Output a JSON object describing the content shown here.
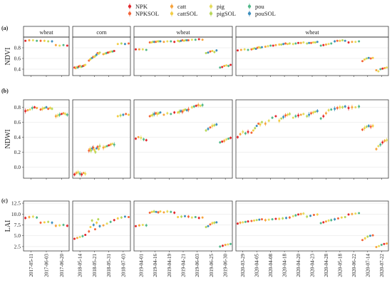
{
  "chart_data": {
    "type": "scatter",
    "legend": {
      "placement": "top",
      "entries": [
        {
          "name": "NPK",
          "color": "#e3292e"
        },
        {
          "name": "NPKSOL",
          "color": "#f3653a"
        },
        {
          "name": "catt",
          "color": "#f7a33d"
        },
        {
          "name": "cattSOL",
          "color": "#f3ce45"
        },
        {
          "name": "pig",
          "color": "#e5dc5c"
        },
        {
          "name": "pigSOL",
          "color": "#b8d85a"
        },
        {
          "name": "pou",
          "color": "#52b98a"
        },
        {
          "name": "pouSOL",
          "color": "#3d8fbe"
        }
      ]
    },
    "facets": [
      {
        "label": "wheat",
        "dates": [
          "2017-05-11",
          "2017-06-03",
          "2017-06-20"
        ]
      },
      {
        "label": "corn",
        "dates": [
          "2018-05-14",
          "2018-05-21",
          "2018-05-31",
          "2018-07-03"
        ]
      },
      {
        "label": "wheat",
        "dates": [
          "2019-04-01",
          "2019-04-16",
          "2019-04-19",
          "2019-04-21",
          "2019-06-03",
          "2019-06-25",
          "2019-06-30"
        ]
      },
      {
        "label": "wheat",
        "dates": [
          "2020-03-29",
          "2020-04-05",
          "2020-04-08",
          "2020-04-18",
          "2020-04-20",
          "2020-04-23",
          "2020-04-28",
          "2020-05-18",
          "2020-06-22",
          "2020-07-14",
          "2020-07-22"
        ]
      }
    ],
    "panels": [
      {
        "tag": "(a)",
        "ylabel": "NDVI",
        "ylim": [
          0.28,
          1.0
        ],
        "yticks": [
          0.4,
          0.6,
          0.8
        ],
        "values": [
          [
            [
              0.93,
              0.94,
              0.94,
              0.93
            ],
            [
              0.93,
              0.93,
              0.92,
              0.92
            ],
            [
              0.85,
              0.84,
              0.85,
              0.84
            ]
          ],
          [
            [
              0.43,
              0.42,
              0.44,
              0.43,
              0.45,
              0.46,
              0.44,
              0.45,
              0.46,
              0.47,
              0.48
            ],
            [
              0.56,
              0.58,
              0.6,
              0.61,
              0.63,
              0.63,
              0.65,
              0.67,
              0.7,
              0.69,
              0.71
            ],
            [
              0.68,
              0.69,
              0.7,
              0.71,
              0.72,
              0.73,
              0.73,
              0.74
            ],
            [
              0.87,
              0.88,
              0.87,
              0.88
            ]
          ],
          [
            [
              0.77,
              0.77,
              0.77,
              0.76
            ],
            [
              0.9,
              0.9,
              0.91,
              0.91,
              0.91,
              0.92,
              0.92,
              0.92
            ],
            [
              0.91,
              0.92,
              0.92,
              0.91
            ],
            [
              0.93,
              0.92,
              0.93,
              0.94,
              0.93,
              0.94,
              0.94,
              0.94
            ],
            [
              0.95,
              0.95,
              0.96,
              0.95
            ],
            [
              0.7,
              0.71,
              0.73,
              0.74,
              0.72,
              0.75
            ],
            [
              0.43,
              0.44,
              0.46,
              0.47,
              0.46,
              0.48
            ]
          ],
          [
            [
              0.75,
              0.76,
              0.77,
              0.76
            ],
            [
              0.77,
              0.78,
              0.79,
              0.78,
              0.8,
              0.81,
              0.8,
              0.81
            ],
            [
              0.82,
              0.83,
              0.84,
              0.84,
              0.85
            ],
            [
              0.86,
              0.86,
              0.87,
              0.88,
              0.87,
              0.88
            ],
            [
              0.87,
              0.88,
              0.89,
              0.89,
              0.9
            ],
            [
              0.88,
              0.89,
              0.89,
              0.9,
              0.9,
              0.91
            ],
            [
              0.84,
              0.85,
              0.86,
              0.87,
              0.88
            ],
            [
              0.92,
              0.93,
              0.93,
              0.94,
              0.93
            ],
            [
              0.9,
              0.91,
              0.91,
              0.92
            ],
            [
              0.55,
              0.58,
              0.6,
              0.61,
              0.6,
              0.61
            ],
            [
              0.38,
              0.36,
              0.4,
              0.41,
              0.42,
              0.43
            ]
          ]
        ]
      },
      {
        "tag": "(b)",
        "ylabel": "NDWI",
        "ylim": [
          -0.15,
          0.9
        ],
        "yticks": [
          0.0,
          0.2,
          0.4,
          0.6,
          0.8
        ],
        "values": [
          [
            [
              0.75,
              0.76,
              0.77,
              0.79,
              0.8,
              0.79
            ],
            [
              0.77,
              0.78,
              0.79,
              0.8,
              0.78,
              0.79,
              0.78
            ],
            [
              0.68,
              0.69,
              0.7,
              0.71,
              0.72,
              0.71,
              0.7
            ]
          ],
          [
            [
              -0.1,
              -0.08,
              -0.07,
              -0.09,
              -0.1,
              -0.08,
              -0.09
            ],
            [
              0.22,
              0.24,
              0.22,
              0.25,
              0.26,
              0.23,
              0.2,
              0.25,
              0.27,
              0.24,
              0.28
            ],
            [
              0.26,
              0.27,
              0.28,
              0.29,
              0.3,
              0.31,
              0.3
            ],
            [
              0.68,
              0.69,
              0.7,
              0.71,
              0.7
            ]
          ],
          [
            [
              0.38,
              0.4,
              0.39,
              0.37,
              0.36
            ],
            [
              0.68,
              0.69,
              0.7,
              0.71,
              0.72,
              0.71,
              0.72,
              0.73
            ],
            [
              0.7,
              0.72,
              0.71,
              0.73
            ],
            [
              0.73,
              0.74,
              0.75,
              0.74,
              0.76,
              0.77,
              0.76,
              0.77
            ],
            [
              0.8,
              0.81,
              0.82,
              0.83,
              0.82,
              0.83
            ],
            [
              0.49,
              0.51,
              0.53,
              0.55,
              0.56,
              0.57
            ],
            [
              0.33,
              0.34,
              0.35,
              0.37,
              0.38,
              0.39
            ]
          ],
          [
            [
              0.4,
              0.44,
              0.47,
              0.45,
              0.47
            ],
            [
              0.46,
              0.49,
              0.52,
              0.55,
              0.58,
              0.57,
              0.6
            ],
            [
              0.58,
              0.62,
              0.66,
              0.68
            ],
            [
              0.62,
              0.65,
              0.67,
              0.69,
              0.7,
              0.71
            ],
            [
              0.66,
              0.68,
              0.69,
              0.7,
              0.71
            ],
            [
              0.68,
              0.7,
              0.72,
              0.73,
              0.74,
              0.75
            ],
            [
              0.65,
              0.68,
              0.72,
              0.76,
              0.77
            ],
            [
              0.78,
              0.79,
              0.8,
              0.8,
              0.81
            ],
            [
              0.79,
              0.8,
              0.8,
              0.81
            ],
            [
              0.5,
              0.52,
              0.54,
              0.55,
              0.54,
              0.55
            ],
            [
              0.24,
              0.28,
              0.3,
              0.33,
              0.35,
              0.36
            ]
          ]
        ]
      },
      {
        "tag": "(c)",
        "ylabel": "LAI",
        "ylim": [
          1.5,
          13.0
        ],
        "yticks": [
          2.5,
          5.0,
          7.5,
          10.0,
          12.5
        ],
        "yticklabels": [
          "2.5",
          "5.0",
          "7.5",
          "10.0",
          "12.5"
        ],
        "values": [
          [
            [
              9.1,
              9.3,
              9.4,
              9.2
            ],
            [
              8.0,
              8.1,
              8.2,
              8.0
            ],
            [
              7.3,
              7.4,
              7.5,
              7.3
            ]
          ],
          [
            [
              4.3,
              4.5,
              4.7,
              4.9,
              5.2
            ],
            [
              6.0,
              7.0,
              8.5,
              7.5,
              6.5,
              8.0,
              8.8,
              7.2
            ],
            [
              7.4,
              7.8,
              8.2,
              8.6
            ],
            [
              9.0,
              9.2,
              9.4,
              9.3
            ]
          ],
          [
            [
              7.2,
              7.4,
              7.5,
              7.4
            ],
            [
              10.3,
              10.5,
              10.6,
              10.5,
              10.4,
              10.6
            ],
            [
              10.4,
              10.6,
              10.5,
              10.3
            ],
            [
              9.3,
              9.4,
              9.5,
              9.4
            ],
            [
              9.2,
              9.3,
              9.1,
              9.2
            ],
            [
              7.0,
              7.2,
              7.6,
              7.9,
              8.0,
              8.1
            ],
            [
              2.5,
              2.7,
              2.9,
              3.0,
              3.1
            ]
          ],
          [
            [
              7.8,
              8.0,
              8.1,
              8.2,
              8.3
            ],
            [
              8.4,
              8.5,
              8.6,
              8.7,
              8.8
            ],
            [
              8.6,
              8.7,
              8.8,
              8.9
            ],
            [
              8.9,
              9.0,
              9.1,
              9.2
            ],
            [
              9.5,
              9.7,
              9.9,
              10.0,
              10.1
            ],
            [
              9.4,
              9.6,
              9.8,
              9.9
            ],
            [
              7.9,
              8.1,
              8.3,
              8.5,
              8.6
            ],
            [
              8.8,
              9.0,
              9.2,
              9.3
            ],
            [
              9.9,
              10.0,
              10.1,
              10.2
            ],
            [
              4.0,
              4.4,
              4.8,
              5.0,
              5.1
            ],
            [
              2.4,
              2.6,
              2.9,
              3.1,
              3.2
            ]
          ]
        ]
      }
    ]
  }
}
